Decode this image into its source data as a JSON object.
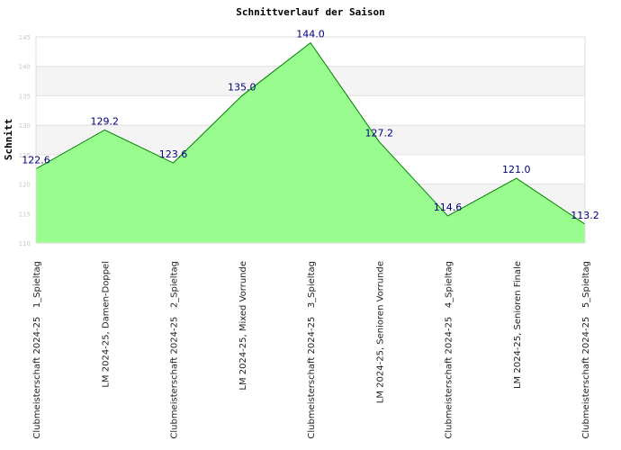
{
  "chart_data": {
    "type": "area",
    "title": "Schnittverlauf der Saison",
    "xlabel": "",
    "ylabel": "Schnitt",
    "ylim": [
      110,
      145
    ],
    "yticks": [
      110,
      115,
      120,
      125,
      130,
      135,
      140,
      145
    ],
    "grid": true,
    "legend": "none",
    "categories": [
      "Clubmeisterschaft 2024-25   1_Spieltag",
      "LM 2024-25, Damen-Doppel",
      "Clubmeisterschaft 2024-25   2_Spieltag",
      "LM 2024-25, Mixed Vorrunde",
      "Clubmeisterschaft 2024-25   3_Spieltag",
      "LM 2024-25, Senioren Vorrunde",
      "Clubmeisterschaft 2024-25   4_Spieltag",
      "LM 2024-25, Senioren Finale",
      "Clubmeisterschaft 2024-25   5_Spieltag"
    ],
    "values": [
      122.6,
      129.2,
      123.6,
      135.0,
      144.0,
      127.2,
      114.6,
      121.0,
      113.2
    ],
    "data_labels": [
      "122.6",
      "129.2",
      "123.6",
      "135.0",
      "144.0",
      "127.2",
      "114.6",
      "121.0",
      "113.2"
    ],
    "colors": {
      "fill": "#98fc8f",
      "line": "#008000",
      "label": "#00007a",
      "band": "#f4f4f4",
      "grid": "#e0e0e0"
    }
  }
}
